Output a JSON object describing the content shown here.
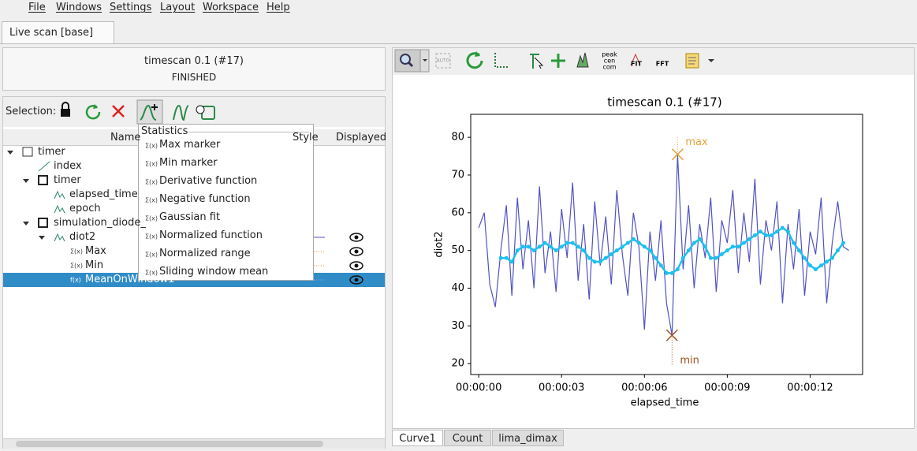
{
  "menu": [
    "File",
    "Windows",
    "Settings",
    "Layout",
    "Workspace",
    "Help"
  ],
  "tab": "Live scan [base]",
  "scan": {
    "title": "timescan 0.1 (#17)",
    "status": "FINISHED"
  },
  "selection_label": "Selection:",
  "toolbar": {
    "auto": "AUTO",
    "peak": [
      "peak",
      "cen",
      "com"
    ],
    "fit": "FIT",
    "fft": "FFT"
  },
  "tree": {
    "columns": [
      "Name",
      "Style",
      "Displayed"
    ],
    "rows": [
      {
        "label": "timer",
        "depth": 0
      },
      {
        "label": "index",
        "depth": 1
      },
      {
        "label": "timer",
        "depth": 1
      },
      {
        "label": "elapsed_time",
        "depth": 2
      },
      {
        "label": "epoch",
        "depth": 2
      },
      {
        "label": "simulation_diode_",
        "depth": 1
      },
      {
        "label": "diot2",
        "depth": 2
      },
      {
        "label": "Max",
        "depth": 3
      },
      {
        "label": "Min",
        "depth": 3
      },
      {
        "label": "MeanOnWindow1",
        "depth": 3
      }
    ]
  },
  "popup": {
    "title": "Statistics",
    "items": [
      "Max marker",
      "Min marker",
      "Derivative function",
      "Negative function",
      "Gaussian fit",
      "Normalized function",
      "Normalized range",
      "Sliding window mean"
    ]
  },
  "bottom_tabs": [
    "Curve1",
    "Count",
    "lima_dimax"
  ],
  "chart_data": {
    "type": "line",
    "title": "timescan 0.1 (#17)",
    "xlabel": "elapsed_time",
    "ylabel": "diot2",
    "x": [
      0,
      0.2,
      0.4,
      0.6,
      0.8,
      1,
      1.2,
      1.4,
      1.6,
      1.8,
      2,
      2.2,
      2.4,
      2.6,
      2.8,
      3,
      3.2,
      3.4,
      3.6,
      3.8,
      4,
      4.2,
      4.4,
      4.6,
      4.8,
      5,
      5.2,
      5.4,
      5.6,
      5.8,
      6,
      6.2,
      6.4,
      6.6,
      6.8,
      7,
      7.2,
      7.4,
      7.6,
      7.8,
      8,
      8.2,
      8.4,
      8.6,
      8.8,
      9,
      9.2,
      9.4,
      9.6,
      9.8,
      10,
      10.2,
      10.4,
      10.6,
      10.8,
      11,
      11.2,
      11.4,
      11.6,
      11.8,
      12,
      12.2,
      12.4,
      12.6,
      12.8,
      13,
      13.2,
      13.4
    ],
    "series": [
      {
        "name": "diot2",
        "color": "#5252c4",
        "values": [
          56,
          60,
          41,
          35,
          50,
          62,
          38,
          64,
          45,
          58,
          40,
          67,
          44,
          55,
          39,
          61,
          48,
          68,
          42,
          57,
          37,
          63,
          46,
          59,
          41,
          66,
          49,
          38,
          60,
          51,
          29,
          55,
          42,
          58,
          36,
          27.5,
          75.5,
          45,
          62,
          40,
          57,
          48,
          64,
          39,
          58,
          52,
          66,
          44,
          60,
          47,
          69,
          41,
          58,
          50,
          63,
          36,
          57,
          45,
          61,
          38,
          55,
          49,
          64,
          36,
          52,
          63,
          51,
          50
        ]
      },
      {
        "name": "MeanOnWindow1",
        "color": "#1ec0ee",
        "values": [
          null,
          null,
          null,
          null,
          48,
          48,
          47,
          50,
          51,
          51,
          50,
          51,
          52,
          51,
          50,
          51,
          52,
          52,
          51,
          50,
          48,
          47,
          47,
          48,
          49,
          50,
          51,
          52,
          53,
          52,
          51,
          50,
          48,
          46,
          44,
          44,
          45,
          48,
          50,
          52,
          53,
          51,
          48,
          48,
          49,
          50,
          51,
          51,
          52,
          53,
          54,
          55,
          54,
          54,
          55,
          56,
          55,
          52,
          50,
          48,
          46,
          45,
          46,
          47,
          48,
          50,
          52,
          null
        ]
      }
    ],
    "markers": [
      {
        "name": "max",
        "x": 7.2,
        "y": 75.5,
        "color": "#e3a23a"
      },
      {
        "name": "min",
        "x": 7.0,
        "y": 27.5,
        "color": "#a0501e"
      }
    ],
    "xlim": [
      -0.29,
      13.9
    ],
    "ylim": [
      17.1,
      86.1
    ],
    "xticks": [
      {
        "value": 0,
        "label": "00:00:00"
      },
      {
        "value": 3,
        "label": "00:00:03"
      },
      {
        "value": 6,
        "label": "00:00:06"
      },
      {
        "value": 9,
        "label": "00:00:09"
      },
      {
        "value": 12,
        "label": "00:00:12"
      }
    ],
    "yticks": [
      20,
      30,
      40,
      50,
      60,
      70,
      80
    ]
  }
}
